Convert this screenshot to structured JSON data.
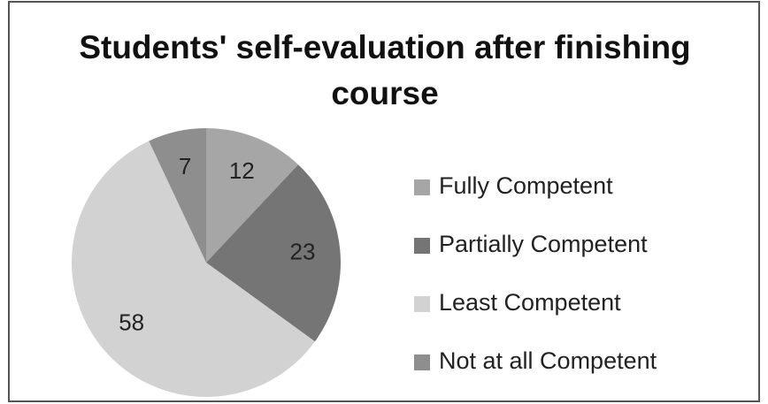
{
  "chart_data": {
    "type": "pie",
    "title": "Students' self-evaluation after finishing course",
    "categories": [
      "Fully Competent",
      "Partially Competent",
      "Least Competent",
      "Not at all Competent"
    ],
    "values": [
      12,
      23,
      58,
      7
    ],
    "colors": [
      "#a6a6a6",
      "#757575",
      "#d2d2d2",
      "#8e8e8e"
    ],
    "legend": "right"
  }
}
